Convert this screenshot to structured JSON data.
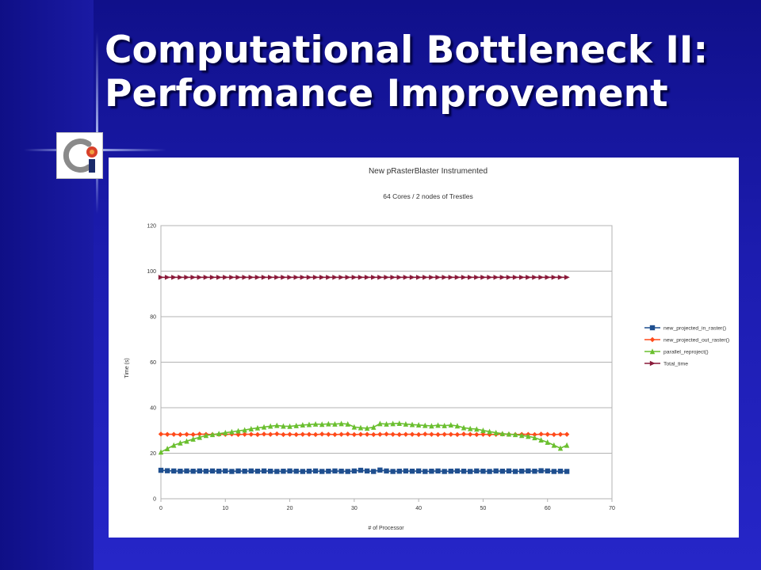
{
  "slide": {
    "title_line1": "Computational Bottleneck II:",
    "title_line2": "Performance Improvement"
  },
  "logo": {
    "icon": "ci-logo-icon"
  },
  "chart_data": {
    "type": "line",
    "title": "New pRasterBlaster Instrumented",
    "subtitle": "64 Cores / 2 nodes of Trestles",
    "xlabel": "# of Processor",
    "ylabel": "Time (s)",
    "xlim": [
      0,
      70
    ],
    "ylim": [
      0,
      120
    ],
    "xticks": [
      0,
      10,
      20,
      30,
      40,
      50,
      60,
      70
    ],
    "yticks": [
      0,
      20,
      40,
      60,
      80,
      100,
      120
    ],
    "grid": "horizontal",
    "legend_position": "right",
    "x": [
      0,
      1,
      2,
      3,
      4,
      5,
      6,
      7,
      8,
      9,
      10,
      11,
      12,
      13,
      14,
      15,
      16,
      17,
      18,
      19,
      20,
      21,
      22,
      23,
      24,
      25,
      26,
      27,
      28,
      29,
      30,
      31,
      32,
      33,
      34,
      35,
      36,
      37,
      38,
      39,
      40,
      41,
      42,
      43,
      44,
      45,
      46,
      47,
      48,
      49,
      50,
      51,
      52,
      53,
      54,
      55,
      56,
      57,
      58,
      59,
      60,
      61,
      62,
      63
    ],
    "series": [
      {
        "name": "new_projected_in_raster()",
        "color": "#1f4f8f",
        "marker": "square",
        "values": [
          12.5,
          12.3,
          12.2,
          12.1,
          12.2,
          12.1,
          12.2,
          12.1,
          12.2,
          12.1,
          12.2,
          12.0,
          12.2,
          12.1,
          12.2,
          12.1,
          12.2,
          12.1,
          12.0,
          12.1,
          12.2,
          12.1,
          12.0,
          12.1,
          12.2,
          12.0,
          12.1,
          12.2,
          12.1,
          12.0,
          12.2,
          12.5,
          12.2,
          12.0,
          12.6,
          12.2,
          12.0,
          12.1,
          12.2,
          12.1,
          12.2,
          12.0,
          12.1,
          12.2,
          12.0,
          12.1,
          12.2,
          12.1,
          12.0,
          12.2,
          12.1,
          12.0,
          12.2,
          12.1,
          12.2,
          12.0,
          12.1,
          12.2,
          12.1,
          12.3,
          12.2,
          12.0,
          12.1,
          12.0
        ]
      },
      {
        "name": "new_projected_out_raster()",
        "color": "#ff4a1a",
        "marker": "diamond",
        "values": [
          28.4,
          28.3,
          28.3,
          28.2,
          28.3,
          28.2,
          28.4,
          28.3,
          28.2,
          28.3,
          28.3,
          28.4,
          28.2,
          28.3,
          28.3,
          28.2,
          28.4,
          28.3,
          28.5,
          28.2,
          28.3,
          28.2,
          28.3,
          28.3,
          28.2,
          28.4,
          28.3,
          28.2,
          28.3,
          28.4,
          28.2,
          28.3,
          28.3,
          28.2,
          28.3,
          28.4,
          28.3,
          28.2,
          28.3,
          28.3,
          28.2,
          28.4,
          28.3,
          28.2,
          28.3,
          28.3,
          28.2,
          28.4,
          28.3,
          28.2,
          28.3,
          28.2,
          28.3,
          28.4,
          28.3,
          28.2,
          28.3,
          28.3,
          28.2,
          28.4,
          28.3,
          28.2,
          28.3,
          28.3
        ]
      },
      {
        "name": "parallel_reproject()",
        "color": "#6abf2f",
        "marker": "triangle",
        "values": [
          20.5,
          22.0,
          23.5,
          24.5,
          25.3,
          26.2,
          27.0,
          27.8,
          28.2,
          28.6,
          29.0,
          29.4,
          29.8,
          30.2,
          30.7,
          31.1,
          31.5,
          31.9,
          32.2,
          31.9,
          31.8,
          32.1,
          32.4,
          32.6,
          32.8,
          32.7,
          32.9,
          32.8,
          33.0,
          32.8,
          31.5,
          31.2,
          31.0,
          31.4,
          33.0,
          32.8,
          33.0,
          33.1,
          32.8,
          32.6,
          32.4,
          32.2,
          32.0,
          32.3,
          32.1,
          32.4,
          32.0,
          31.2,
          30.8,
          30.6,
          30.0,
          29.5,
          29.0,
          28.6,
          28.4,
          28.2,
          27.8,
          27.4,
          26.8,
          25.8,
          24.8,
          23.5,
          22.2,
          23.5
        ]
      },
      {
        "name": "Total_time",
        "color": "#8a1a3a",
        "marker": "triangle-right",
        "values": [
          97.3,
          97.3,
          97.3,
          97.3,
          97.3,
          97.3,
          97.3,
          97.3,
          97.3,
          97.3,
          97.3,
          97.3,
          97.3,
          97.3,
          97.3,
          97.3,
          97.3,
          97.3,
          97.3,
          97.3,
          97.3,
          97.3,
          97.3,
          97.3,
          97.3,
          97.3,
          97.3,
          97.3,
          97.3,
          97.3,
          97.3,
          97.3,
          97.3,
          97.3,
          97.3,
          97.3,
          97.3,
          97.3,
          97.3,
          97.3,
          97.3,
          97.3,
          97.3,
          97.3,
          97.3,
          97.3,
          97.3,
          97.3,
          97.3,
          97.3,
          97.3,
          97.3,
          97.3,
          97.3,
          97.3,
          97.3,
          97.3,
          97.3,
          97.3,
          97.3,
          97.3,
          97.3,
          97.3,
          97.3
        ]
      }
    ]
  }
}
